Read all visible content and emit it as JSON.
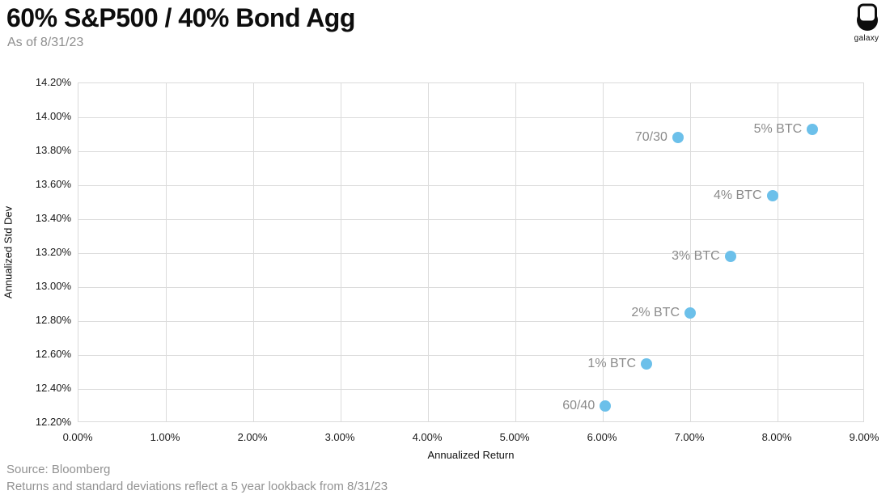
{
  "header": {
    "title": "60% S&P500 / 40% Bond Agg",
    "subtitle": "As of 8/31/23",
    "logo_text": "galaxy"
  },
  "chart_data": {
    "type": "scatter",
    "title": "60% S&P500 / 40% Bond Agg",
    "subtitle": "As of 8/31/23",
    "xlabel": "Annualized Return",
    "ylabel": "Annualized Std Dev",
    "xlim": [
      0,
      9
    ],
    "ylim": [
      12.2,
      14.2
    ],
    "grid": true,
    "marker_color": "#6cc0ea",
    "x_ticks": [
      "0.00%",
      "1.00%",
      "2.00%",
      "3.00%",
      "4.00%",
      "5.00%",
      "6.00%",
      "7.00%",
      "8.00%",
      "9.00%"
    ],
    "y_ticks": [
      "14.20%",
      "14.00%",
      "13.80%",
      "13.60%",
      "13.40%",
      "13.20%",
      "13.00%",
      "12.80%",
      "12.60%",
      "12.40%",
      "12.20%"
    ],
    "points": [
      {
        "label": "60/40",
        "x": 6.03,
        "y": 12.3
      },
      {
        "label": "1% BTC",
        "x": 6.5,
        "y": 12.55
      },
      {
        "label": "2% BTC",
        "x": 7.0,
        "y": 12.85
      },
      {
        "label": "3% BTC",
        "x": 7.46,
        "y": 13.18
      },
      {
        "label": "4% BTC",
        "x": 7.94,
        "y": 13.54
      },
      {
        "label": "70/30",
        "x": 6.86,
        "y": 13.88
      },
      {
        "label": "5% BTC",
        "x": 8.4,
        "y": 13.93
      }
    ]
  },
  "footer": {
    "source": "Source: Bloomberg",
    "note": "Returns and standard deviations reflect a 5 year lookback from 8/31/23"
  }
}
